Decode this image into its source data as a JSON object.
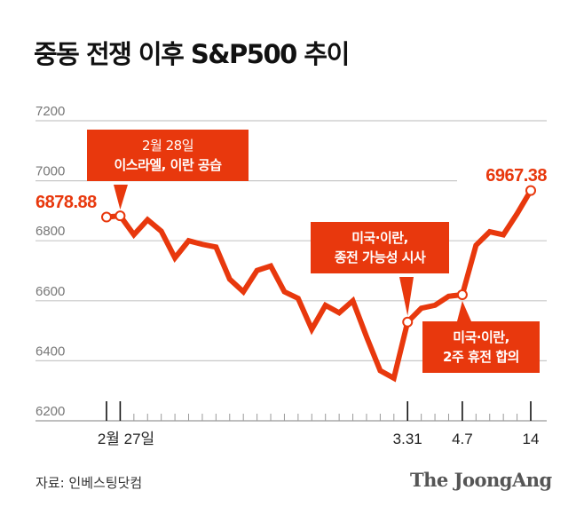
{
  "title": "중동 전쟁 이후 S&P500 추이",
  "source": "자료: 인베스팅닷컴",
  "logo": "The JoongAng",
  "colors": {
    "line": "#e8380d",
    "grid": "#c8c8c8",
    "annotation_bg": "#e8380d"
  },
  "chart_data": {
    "type": "line",
    "title": "중동 전쟁 이후 S&P500 추이",
    "ylim": [
      6200,
      7200
    ],
    "yticks": [
      7200,
      7000,
      6800,
      6600,
      6400,
      6200
    ],
    "grid": true,
    "xtick_labels": [
      {
        "index": 0,
        "label": "2월 27일"
      },
      {
        "index": 22,
        "label": "3.31"
      },
      {
        "index": 26,
        "label": "4.7"
      },
      {
        "index": 31,
        "label": "14"
      }
    ],
    "values": [
      6878.88,
      6883,
      6820,
      6870,
      6832,
      6743,
      6800,
      6788,
      6779,
      6672,
      6630,
      6701,
      6716,
      6630,
      6608,
      6505,
      6585,
      6560,
      6600,
      6480,
      6367,
      6342,
      6529,
      6575,
      6585,
      6615,
      6620,
      6785,
      6830,
      6820,
      6890,
      6967.38
    ],
    "data_labels": [
      {
        "index": 0,
        "text": "6878.88"
      },
      {
        "index": 31,
        "text": "6967.38"
      }
    ],
    "annotations": [
      {
        "index": 1,
        "line1": "2월 28일",
        "line2": "이스라엘, 이란 공습"
      },
      {
        "index": 22,
        "line1": "미국·이란,",
        "line2": "종전 가능성 시사"
      },
      {
        "index": 26,
        "line1": "미국·이란,",
        "line2": "2주 휴전 합의"
      }
    ]
  }
}
